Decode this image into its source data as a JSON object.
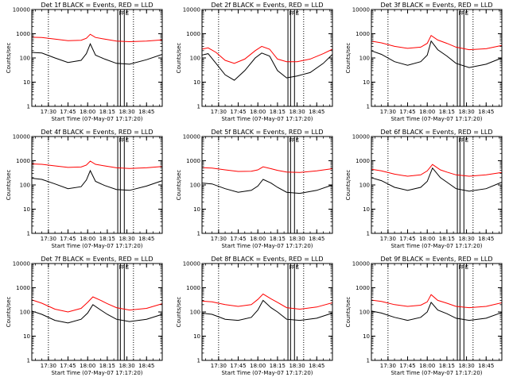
{
  "colors": {
    "black_series": "#000000",
    "red_series": "#ff0000",
    "axes": "#000000"
  },
  "chart_data": [
    {
      "type": "line",
      "title": "Det 1f BLACK = Events, RED = LLD",
      "xlabel": "Start Time (07-May-07 17:17:20)",
      "ylabel": "Counts/sec",
      "scale_y": "log",
      "ylim": [
        1,
        10000
      ],
      "xlim": [
        "17:17:20",
        "18:57:00"
      ],
      "x_tick_labels": [
        "17:30",
        "17:45",
        "18:00",
        "18:15",
        "18:30",
        "18:45"
      ],
      "y_tick_labels": [
        "1",
        "10",
        "100",
        "1000",
        "10000"
      ],
      "markers": [
        "F",
        "F",
        "E"
      ],
      "series": [
        {
          "color": "#000000",
          "x": [
            "17:17",
            "17:25",
            "17:35",
            "17:45",
            "17:55",
            "17:59",
            "18:02",
            "18:06",
            "18:13",
            "18:22",
            "18:32",
            "18:45",
            "18:57"
          ],
          "values": [
            170,
            160,
            100,
            65,
            80,
            150,
            380,
            130,
            90,
            60,
            55,
            85,
            140
          ]
        },
        {
          "color": "#ff0000",
          "x": [
            "17:17",
            "17:25",
            "17:35",
            "17:45",
            "17:55",
            "17:59",
            "18:02",
            "18:06",
            "18:13",
            "18:22",
            "18:32",
            "18:45",
            "18:57"
          ],
          "values": [
            720,
            700,
            600,
            520,
            540,
            650,
            950,
            700,
            600,
            500,
            470,
            500,
            560
          ]
        }
      ]
    },
    {
      "type": "line",
      "title": "Det 2f BLACK = Events, RED = LLD",
      "xlabel": "Start Time (07-May-07 17:17:20)",
      "ylabel": "Counts/sec",
      "scale_y": "log",
      "ylim": [
        1,
        10000
      ],
      "xlim": [
        "17:17:20",
        "18:57:00"
      ],
      "x_tick_labels": [
        "17:30",
        "17:45",
        "18:00",
        "18:15",
        "18:30",
        "18:45"
      ],
      "y_tick_labels": [
        "1",
        "10",
        "100",
        "1000",
        "10000"
      ],
      "markers": [
        "F",
        "F",
        "E"
      ],
      "series": [
        {
          "color": "#000000",
          "x": [
            "17:17",
            "17:22",
            "17:28",
            "17:35",
            "17:42",
            "17:50",
            "17:58",
            "18:03",
            "18:09",
            "18:15",
            "18:22",
            "18:30",
            "18:40",
            "18:50",
            "18:57"
          ],
          "values": [
            130,
            150,
            60,
            20,
            12,
            30,
            100,
            160,
            120,
            30,
            15,
            18,
            25,
            60,
            140
          ]
        },
        {
          "color": "#ff0000",
          "x": [
            "17:17",
            "17:22",
            "17:28",
            "17:35",
            "17:42",
            "17:50",
            "17:58",
            "18:03",
            "18:09",
            "18:15",
            "18:22",
            "18:30",
            "18:40",
            "18:50",
            "18:57"
          ],
          "values": [
            230,
            260,
            170,
            80,
            60,
            90,
            200,
            300,
            230,
            90,
            70,
            70,
            90,
            150,
            230
          ]
        }
      ]
    },
    {
      "type": "line",
      "title": "Det 3f BLACK = Events, RED = LLD",
      "xlabel": "Start Time (07-May-07 17:17:20)",
      "ylabel": "Counts/sec",
      "scale_y": "log",
      "ylim": [
        1,
        10000
      ],
      "xlim": [
        "17:17:20",
        "18:57:00"
      ],
      "x_tick_labels": [
        "17:30",
        "17:45",
        "18:00",
        "18:15",
        "18:30",
        "18:45"
      ],
      "y_tick_labels": [
        "1",
        "10",
        "100",
        "1000",
        "10000"
      ],
      "markers": [
        "F",
        "F",
        "E"
      ],
      "series": [
        {
          "color": "#000000",
          "x": [
            "17:17",
            "17:25",
            "17:35",
            "17:45",
            "17:55",
            "18:00",
            "18:03",
            "18:08",
            "18:15",
            "18:22",
            "18:32",
            "18:45",
            "18:57"
          ],
          "values": [
            200,
            140,
            70,
            50,
            70,
            130,
            500,
            220,
            120,
            60,
            40,
            55,
            100
          ]
        },
        {
          "color": "#ff0000",
          "x": [
            "17:17",
            "17:25",
            "17:35",
            "17:45",
            "17:55",
            "18:00",
            "18:03",
            "18:08",
            "18:15",
            "18:22",
            "18:32",
            "18:45",
            "18:57"
          ],
          "values": [
            500,
            420,
            300,
            250,
            280,
            400,
            850,
            550,
            400,
            280,
            220,
            240,
            330
          ]
        }
      ]
    },
    {
      "type": "line",
      "title": "Det 4f BLACK = Events, RED = LLD",
      "xlabel": "Start Time (07-May-07 17:17:20)",
      "ylabel": "Counts/sec",
      "scale_y": "log",
      "ylim": [
        1,
        10000
      ],
      "xlim": [
        "17:17:20",
        "18:57:00"
      ],
      "x_tick_labels": [
        "17:30",
        "17:45",
        "18:00",
        "18:15",
        "18:30",
        "18:45"
      ],
      "y_tick_labels": [
        "1",
        "10",
        "100",
        "1000",
        "10000"
      ],
      "markers": [
        "F",
        "F",
        "E"
      ],
      "series": [
        {
          "color": "#000000",
          "x": [
            "17:17",
            "17:25",
            "17:35",
            "17:45",
            "17:55",
            "17:59",
            "18:02",
            "18:06",
            "18:13",
            "18:22",
            "18:32",
            "18:45",
            "18:57"
          ],
          "values": [
            190,
            170,
            110,
            70,
            85,
            160,
            390,
            140,
            95,
            65,
            60,
            90,
            150
          ]
        },
        {
          "color": "#ff0000",
          "x": [
            "17:17",
            "17:25",
            "17:35",
            "17:45",
            "17:55",
            "17:59",
            "18:02",
            "18:06",
            "18:13",
            "18:22",
            "18:32",
            "18:45",
            "18:57"
          ],
          "values": [
            740,
            710,
            610,
            530,
            550,
            660,
            960,
            710,
            610,
            510,
            480,
            510,
            580
          ]
        }
      ]
    },
    {
      "type": "line",
      "title": "Det 5f BLACK = Events, RED = LLD",
      "xlabel": "Start Time (07-May-07 17:17:20)",
      "ylabel": "Counts/sec",
      "scale_y": "log",
      "ylim": [
        1,
        10000
      ],
      "xlim": [
        "17:17:20",
        "18:57:00"
      ],
      "x_tick_labels": [
        "17:30",
        "17:45",
        "18:00",
        "18:15",
        "18:30",
        "18:45"
      ],
      "y_tick_labels": [
        "1",
        "10",
        "100",
        "1000",
        "10000"
      ],
      "markers": [
        "F",
        "F",
        "E"
      ],
      "series": [
        {
          "color": "#000000",
          "x": [
            "17:17",
            "17:25",
            "17:35",
            "17:45",
            "17:55",
            "18:00",
            "18:04",
            "18:10",
            "18:15",
            "18:22",
            "18:32",
            "18:45",
            "18:57"
          ],
          "values": [
            120,
            110,
            70,
            50,
            60,
            90,
            170,
            120,
            80,
            50,
            45,
            60,
            100
          ]
        },
        {
          "color": "#ff0000",
          "x": [
            "17:17",
            "17:25",
            "17:35",
            "17:45",
            "17:55",
            "18:00",
            "18:04",
            "18:10",
            "18:15",
            "18:22",
            "18:32",
            "18:45",
            "18:57"
          ],
          "values": [
            520,
            500,
            420,
            360,
            370,
            420,
            560,
            470,
            400,
            340,
            330,
            380,
            470
          ]
        }
      ]
    },
    {
      "type": "line",
      "title": "Det 6f BLACK = Events, RED = LLD",
      "xlabel": "Start Time (07-May-07 17:17:20)",
      "ylabel": "Counts/sec",
      "scale_y": "log",
      "ylim": [
        1,
        10000
      ],
      "xlim": [
        "17:17:20",
        "18:57:00"
      ],
      "x_tick_labels": [
        "17:30",
        "17:45",
        "18:00",
        "18:15",
        "18:30",
        "18:45"
      ],
      "y_tick_labels": [
        "1",
        "10",
        "100",
        "1000",
        "10000"
      ],
      "markers": [
        "F",
        "F",
        "E"
      ],
      "series": [
        {
          "color": "#000000",
          "x": [
            "17:17",
            "17:25",
            "17:35",
            "17:45",
            "17:55",
            "18:00",
            "18:04",
            "18:10",
            "18:15",
            "18:22",
            "18:32",
            "18:45",
            "18:57"
          ],
          "values": [
            200,
            150,
            80,
            60,
            80,
            140,
            500,
            200,
            130,
            70,
            55,
            70,
            130
          ]
        },
        {
          "color": "#ff0000",
          "x": [
            "17:17",
            "17:25",
            "17:35",
            "17:45",
            "17:55",
            "18:00",
            "18:04",
            "18:10",
            "18:15",
            "18:22",
            "18:32",
            "18:45",
            "18:57"
          ],
          "values": [
            450,
            380,
            280,
            230,
            260,
            380,
            700,
            420,
            340,
            260,
            230,
            260,
            330
          ]
        }
      ]
    },
    {
      "type": "line",
      "title": "Det 7f BLACK = Events, RED = LLD",
      "xlabel": "Start Time (07-May-07 17:17:20)",
      "ylabel": "Counts/sec",
      "scale_y": "log",
      "ylim": [
        1,
        10000
      ],
      "xlim": [
        "17:17:20",
        "18:57:00"
      ],
      "x_tick_labels": [
        "17:30",
        "17:45",
        "18:00",
        "18:15",
        "18:30",
        "18:45"
      ],
      "y_tick_labels": [
        "1",
        "10",
        "100",
        "1000",
        "10000"
      ],
      "markers": [
        "F",
        "F",
        "E"
      ],
      "series": [
        {
          "color": "#000000",
          "x": [
            "17:17",
            "17:25",
            "17:35",
            "17:45",
            "17:55",
            "18:00",
            "18:04",
            "18:10",
            "18:15",
            "18:22",
            "18:32",
            "18:45",
            "18:57"
          ],
          "values": [
            110,
            80,
            45,
            35,
            50,
            90,
            200,
            120,
            80,
            50,
            40,
            50,
            80
          ]
        },
        {
          "color": "#ff0000",
          "x": [
            "17:17",
            "17:25",
            "17:35",
            "17:45",
            "17:55",
            "18:00",
            "18:04",
            "18:10",
            "18:15",
            "18:22",
            "18:32",
            "18:45",
            "18:57"
          ],
          "values": [
            320,
            230,
            130,
            100,
            140,
            250,
            420,
            300,
            220,
            150,
            120,
            140,
            220
          ]
        }
      ]
    },
    {
      "type": "line",
      "title": "Det 8f BLACK = Events, RED = LLD",
      "xlabel": "Start Time (07-May-07 17:17:20)",
      "ylabel": "Counts/sec",
      "scale_y": "log",
      "ylim": [
        1,
        10000
      ],
      "xlim": [
        "17:17:20",
        "18:57:00"
      ],
      "x_tick_labels": [
        "17:30",
        "17:45",
        "18:00",
        "18:15",
        "18:30",
        "18:45"
      ],
      "y_tick_labels": [
        "1",
        "10",
        "100",
        "1000",
        "10000"
      ],
      "markers": [
        "F",
        "F",
        "E"
      ],
      "series": [
        {
          "color": "#000000",
          "x": [
            "17:17",
            "17:25",
            "17:35",
            "17:45",
            "17:55",
            "18:00",
            "18:04",
            "18:10",
            "18:15",
            "18:22",
            "18:32",
            "18:45",
            "18:57"
          ],
          "values": [
            90,
            80,
            50,
            45,
            60,
            120,
            300,
            150,
            100,
            50,
            45,
            55,
            90
          ]
        },
        {
          "color": "#ff0000",
          "x": [
            "17:17",
            "17:25",
            "17:35",
            "17:45",
            "17:55",
            "18:00",
            "18:04",
            "18:10",
            "18:15",
            "18:22",
            "18:32",
            "18:45",
            "18:57"
          ],
          "values": [
            280,
            260,
            200,
            170,
            200,
            330,
            550,
            350,
            250,
            150,
            130,
            160,
            240
          ]
        }
      ]
    },
    {
      "type": "line",
      "title": "Det 9f BLACK = Events, RED = LLD",
      "xlabel": "Start Time (07-May-07 17:17:20)",
      "ylabel": "Counts/sec",
      "scale_y": "log",
      "ylim": [
        1,
        10000
      ],
      "xlim": [
        "17:17:20",
        "18:57:00"
      ],
      "x_tick_labels": [
        "17:30",
        "17:45",
        "18:00",
        "18:15",
        "18:30",
        "18:45"
      ],
      "y_tick_labels": [
        "1",
        "10",
        "100",
        "1000",
        "10000"
      ],
      "markers": [
        "F",
        "F",
        "E"
      ],
      "series": [
        {
          "color": "#000000",
          "x": [
            "17:17",
            "17:25",
            "17:35",
            "17:45",
            "17:55",
            "18:00",
            "18:03",
            "18:08",
            "18:15",
            "18:22",
            "18:32",
            "18:45",
            "18:57"
          ],
          "values": [
            110,
            90,
            60,
            45,
            60,
            100,
            250,
            120,
            85,
            55,
            45,
            55,
            95
          ]
        },
        {
          "color": "#ff0000",
          "x": [
            "17:17",
            "17:25",
            "17:35",
            "17:45",
            "17:55",
            "18:00",
            "18:03",
            "18:08",
            "18:15",
            "18:22",
            "18:32",
            "18:45",
            "18:57"
          ],
          "values": [
            310,
            270,
            200,
            170,
            190,
            260,
            520,
            300,
            230,
            170,
            150,
            170,
            240
          ]
        }
      ]
    }
  ]
}
